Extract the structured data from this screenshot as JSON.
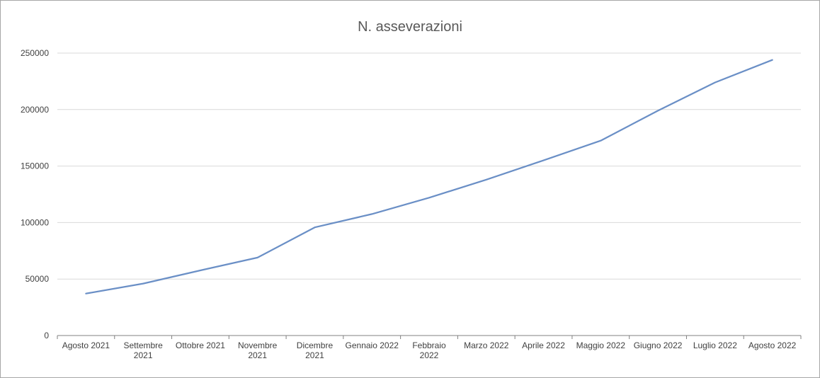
{
  "chart_data": {
    "type": "line",
    "title": "N. asseverazioni",
    "xlabel": "",
    "ylabel": "",
    "categories": [
      [
        "Agosto 2021"
      ],
      [
        "Settembre",
        "2021"
      ],
      [
        "Ottobre 2021"
      ],
      [
        "Novembre",
        "2021"
      ],
      [
        "Dicembre",
        "2021"
      ],
      [
        "Gennaio 2022"
      ],
      [
        "Febbraio",
        "2022"
      ],
      [
        "Marzo 2022"
      ],
      [
        "Aprile 2022"
      ],
      [
        "Maggio 2022"
      ],
      [
        "Giugno 2022"
      ],
      [
        "Luglio 2022"
      ],
      [
        "Agosto 2022"
      ]
    ],
    "series": [
      {
        "values": [
          37128,
          46000,
          57664,
          69000,
          95718,
          107500,
          122000,
          138000,
          155000,
          172500,
          199000,
          224000,
          243907
        ]
      }
    ],
    "ylim": [
      0,
      250000
    ],
    "yticks": [
      "0",
      "50000",
      "100000",
      "150000",
      "200000",
      "250000"
    ],
    "ytick_values": [
      0,
      50000,
      100000,
      150000,
      200000,
      250000
    ],
    "grid": true,
    "legend": "none",
    "colors": {
      "line": "#6a8fc6",
      "grid": "#d9d9d9",
      "axis": "#808080"
    }
  }
}
